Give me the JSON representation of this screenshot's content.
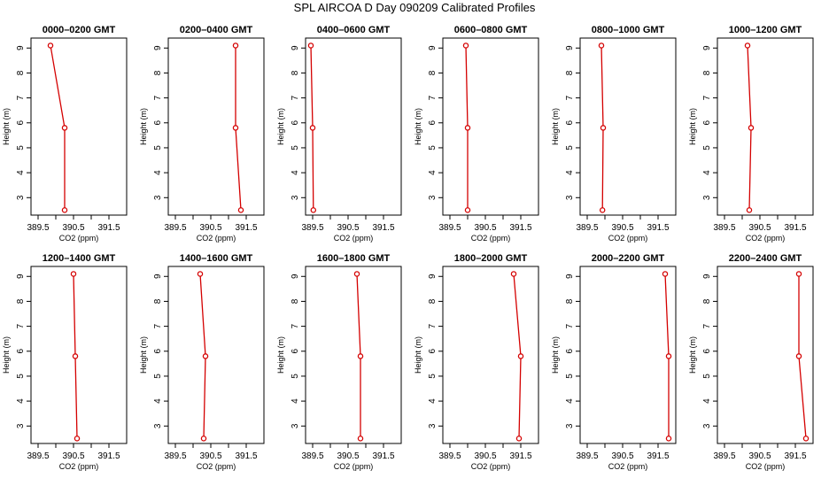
{
  "title": "SPL AIRCOA D  Day 090209  Calibrated Profiles",
  "colors": {
    "series": "#d40000",
    "axis": "#000000"
  },
  "chart_data": {
    "type": "line",
    "xlabel": "CO2 (ppm)",
    "ylabel": "Height (m)",
    "xlim": [
      389.3,
      392.0
    ],
    "ylim": [
      2.3,
      9.4
    ],
    "xticks": [
      389.5,
      390.5,
      391.5
    ],
    "xtick_labels": [
      "389.5",
      "390.5",
      "391.5"
    ],
    "xtick_minor": [
      390.0,
      391.0
    ],
    "yticks": [
      3,
      4,
      5,
      6,
      7,
      8,
      9
    ],
    "ytick_labels": [
      "3",
      "4",
      "5",
      "6",
      "7",
      "8",
      "9"
    ],
    "heights": [
      9.1,
      5.8,
      2.5
    ],
    "panels": [
      {
        "title": "0000–0200 GMT",
        "co2": [
          389.85,
          390.25,
          390.25
        ]
      },
      {
        "title": "0200–0400 GMT",
        "co2": [
          391.2,
          391.2,
          391.35
        ]
      },
      {
        "title": "0400–0600 GMT",
        "co2": [
          389.45,
          389.5,
          389.52
        ]
      },
      {
        "title": "0600–0800 GMT",
        "co2": [
          389.95,
          390.0,
          390.0
        ]
      },
      {
        "title": "0800–1000 GMT",
        "co2": [
          389.9,
          389.95,
          389.93
        ]
      },
      {
        "title": "1000–1200 GMT",
        "co2": [
          390.15,
          390.25,
          390.2
        ]
      },
      {
        "title": "1200–1400 GMT",
        "co2": [
          390.5,
          390.55,
          390.6
        ]
      },
      {
        "title": "1400–1600 GMT",
        "co2": [
          390.2,
          390.35,
          390.3
        ]
      },
      {
        "title": "1600–1800 GMT",
        "co2": [
          390.75,
          390.85,
          390.85
        ]
      },
      {
        "title": "1800–2000 GMT",
        "co2": [
          391.3,
          391.5,
          391.45
        ]
      },
      {
        "title": "2000–2200 GMT",
        "co2": [
          391.7,
          391.8,
          391.8
        ]
      },
      {
        "title": "2200–2400 GMT",
        "co2": [
          391.6,
          391.6,
          391.8
        ]
      }
    ]
  }
}
